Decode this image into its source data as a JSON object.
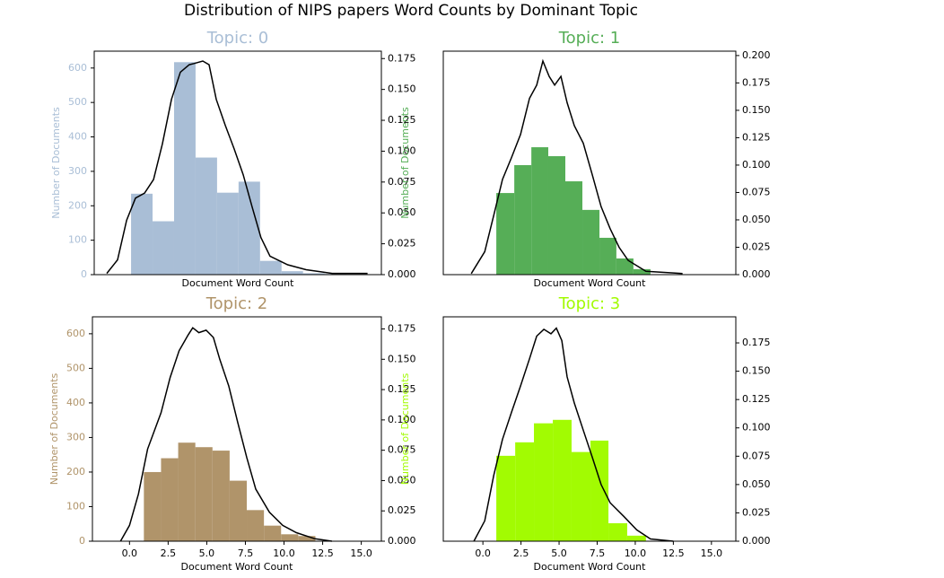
{
  "title": "Distribution of NIPS papers Word Counts by Dominant Topic",
  "chart_data": [
    {
      "type": "histogram",
      "title": "Topic: 0",
      "color": "#a9bed6",
      "xlabel": "Document Word Count",
      "ylabel": "Number of Documents",
      "bins": [
        0,
        1.4,
        2.8,
        4.2,
        5.6,
        7.0,
        8.4,
        9.8,
        11.2,
        12.6,
        14.0
      ],
      "values": [
        235,
        155,
        617,
        340,
        238,
        270,
        40,
        10,
        4,
        2
      ],
      "xlim": [
        -2.4,
        16.3
      ],
      "ylim": [
        0,
        649
      ],
      "yticks": [
        0,
        100,
        200,
        300,
        400,
        500,
        600
      ],
      "y2lim": [
        0,
        0.181
      ],
      "y2ticks": [
        {
          "value": 0,
          "label": "0.000"
        },
        0.025,
        {
          "value": 0.05,
          "label": "0.050"
        },
        0.075,
        {
          "value": 0.1,
          "label": "0.100"
        },
        0.125,
        {
          "value": 0.15,
          "label": "0.150"
        },
        0.175
      ],
      "series": [
        {
          "axis": "y2",
          "color": "#000000",
          "x": [
            -1.58,
            -0.88,
            -0.29,
            0.29,
            0.88,
            1.46,
            2.04,
            2.63,
            3.21,
            3.79,
            4.09,
            4.67,
            5.08,
            5.55,
            6.13,
            6.71,
            7.3,
            7.88,
            8.46,
            9.05,
            10.2,
            11.4,
            13.1,
            15.4
          ],
          "values": [
            0.001,
            0.012,
            0.044,
            0.062,
            0.066,
            0.077,
            0.106,
            0.142,
            0.164,
            0.17,
            0.171,
            0.173,
            0.17,
            0.142,
            0.121,
            0.102,
            0.081,
            0.055,
            0.03,
            0.015,
            0.008,
            0.004,
            0.001,
            0.001
          ]
        }
      ]
    },
    {
      "type": "histogram",
      "title": "Topic: 1",
      "color": "#56ae57",
      "xlabel": "Document Word Count",
      "ylabel": "Number of Documents",
      "bins": [
        0.88,
        2.06,
        3.18,
        4.29,
        5.41,
        6.53,
        7.65,
        8.76,
        9.88,
        11.0
      ],
      "values": [
        237,
        318,
        370,
        344,
        271,
        188,
        107,
        47,
        16
      ],
      "xlim": [
        -2.6,
        16.6
      ],
      "ylim": [
        0,
        649
      ],
      "y2lim": [
        0,
        0.204
      ],
      "y2ticks": [
        {
          "value": 0,
          "label": "0.000"
        },
        0.025,
        {
          "value": 0.05,
          "label": "0.050"
        },
        0.075,
        {
          "value": 0.1,
          "label": "0.100"
        },
        0.125,
        {
          "value": 0.15,
          "label": "0.150"
        },
        0.175,
        {
          "value": 0.2,
          "label": "0.200"
        }
      ],
      "series": [
        {
          "axis": "y2",
          "color": "#000000",
          "x": [
            -0.76,
            0.12,
            0.71,
            1.29,
            1.88,
            2.47,
            3.06,
            3.53,
            3.94,
            4.35,
            4.71,
            5.12,
            5.53,
            6.0,
            6.59,
            7.18,
            7.76,
            8.35,
            8.94,
            9.53,
            10.7,
            13.1
          ],
          "values": [
            0.001,
            0.021,
            0.054,
            0.087,
            0.107,
            0.128,
            0.161,
            0.173,
            0.195,
            0.181,
            0.173,
            0.181,
            0.157,
            0.136,
            0.12,
            0.091,
            0.062,
            0.042,
            0.025,
            0.013,
            0.003,
            0.001
          ]
        }
      ]
    },
    {
      "type": "histogram",
      "title": "Topic: 2",
      "color": "#b0946a",
      "xlabel": "Document Word Count",
      "ylabel": "Number of Documents",
      "bins": [
        0.93,
        2.04,
        3.15,
        4.26,
        5.37,
        6.48,
        7.59,
        8.7,
        9.81,
        10.92,
        12.03
      ],
      "values": [
        200,
        240,
        285,
        272,
        262,
        175,
        90,
        45,
        20,
        15
      ],
      "xlim": [
        -2.4,
        16.3
      ],
      "xticks": [
        {
          "value": 0,
          "label": "0.0"
        },
        2.5,
        {
          "value": 5,
          "label": "5.0"
        },
        7.5,
        {
          "value": 10,
          "label": "10.0"
        },
        12.5,
        {
          "value": 15,
          "label": "15.0"
        }
      ],
      "ylim": [
        0,
        649
      ],
      "yticks": [
        0,
        100,
        200,
        300,
        400,
        500,
        600
      ],
      "y2lim": [
        0,
        0.185
      ],
      "y2ticks": [
        {
          "value": 0,
          "label": "0.000"
        },
        0.025,
        {
          "value": 0.05,
          "label": "0.050"
        },
        0.075,
        {
          "value": 0.1,
          "label": "0.100"
        },
        0.125,
        {
          "value": 0.15,
          "label": "0.150"
        },
        0.175
      ],
      "series": [
        {
          "axis": "y2",
          "color": "#000000",
          "x": [
            -0.58,
            0,
            0.58,
            1.17,
            2.04,
            2.63,
            3.21,
            3.79,
            4.09,
            4.49,
            4.96,
            5.43,
            5.84,
            6.42,
            7.0,
            7.59,
            8.17,
            9.05,
            9.92,
            10.8,
            12.0,
            13.1
          ],
          "values": [
            0,
            0.013,
            0.039,
            0.076,
            0.106,
            0.135,
            0.157,
            0.17,
            0.176,
            0.172,
            0.174,
            0.168,
            0.15,
            0.128,
            0.098,
            0.069,
            0.043,
            0.024,
            0.013,
            0.007,
            0.002,
            0
          ]
        }
      ]
    },
    {
      "type": "histogram",
      "title": "Topic: 3",
      "color": "#a2fb02",
      "xlabel": "Document Word Count",
      "ylabel": "Number of Documents",
      "bins": [
        0.88,
        2.12,
        3.35,
        4.59,
        5.82,
        7.06,
        8.24,
        9.47,
        10.7
      ],
      "values": [
        247,
        286,
        341,
        351,
        258,
        291,
        52,
        16
      ],
      "xlim": [
        -2.6,
        16.6
      ],
      "xticks": [
        {
          "value": 0,
          "label": "0.0"
        },
        2.5,
        {
          "value": 5,
          "label": "5.0"
        },
        7.5,
        {
          "value": 10,
          "label": "10.0"
        },
        12.5,
        {
          "value": 15,
          "label": "15.0"
        }
      ],
      "ylim": [
        0,
        649
      ],
      "y2lim": [
        0,
        0.198
      ],
      "y2ticks": [
        {
          "value": 0,
          "label": "0.000"
        },
        0.025,
        {
          "value": 0.05,
          "label": "0.050"
        },
        0.075,
        {
          "value": 0.1,
          "label": "0.100"
        },
        0.125,
        {
          "value": 0.15,
          "label": "0.150"
        },
        0.175
      ],
      "series": [
        {
          "axis": "y2",
          "color": "#000000",
          "x": [
            -0.59,
            0.12,
            0.71,
            1.29,
            1.88,
            2.47,
            3.06,
            3.53,
            4.0,
            4.47,
            4.82,
            5.18,
            5.53,
            6.0,
            6.59,
            7.18,
            7.76,
            8.35,
            9.24,
            10.1,
            11.0,
            12.5
          ],
          "values": [
            0,
            0.018,
            0.058,
            0.09,
            0.114,
            0.137,
            0.161,
            0.181,
            0.187,
            0.183,
            0.188,
            0.177,
            0.145,
            0.122,
            0.098,
            0.074,
            0.05,
            0.034,
            0.022,
            0.01,
            0.002,
            0
          ]
        }
      ]
    }
  ]
}
